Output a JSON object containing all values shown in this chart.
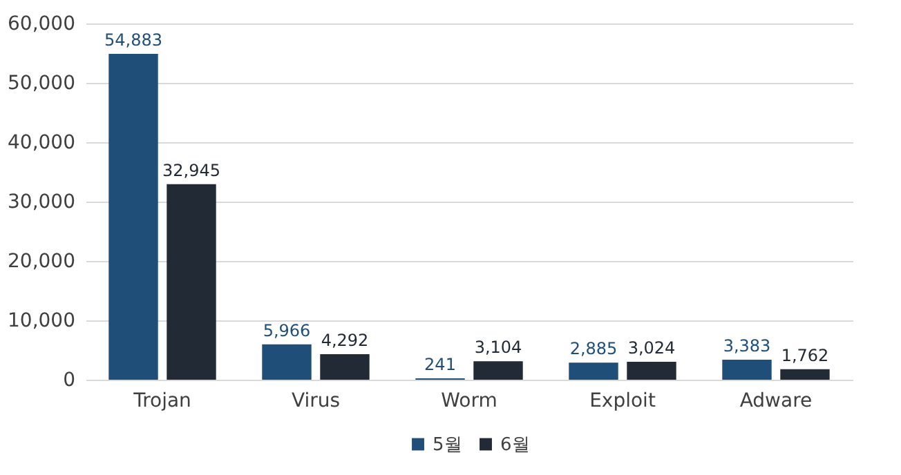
{
  "chart_data": {
    "type": "bar",
    "categories": [
      "Trojan",
      "Virus",
      "Worm",
      "Exploit",
      "Adware"
    ],
    "series": [
      {
        "name": "5월",
        "color": "#1f4e79",
        "values": [
          54883,
          5966,
          241,
          2885,
          3383
        ],
        "value_labels": [
          "54,883",
          "5,966",
          "241",
          "2,885",
          "3,383"
        ]
      },
      {
        "name": "6월",
        "color": "#222a35",
        "values": [
          32945,
          4292,
          3104,
          3024,
          1762
        ],
        "value_labels": [
          "32,945",
          "4,292",
          "3,104",
          "3,024",
          "1,762"
        ]
      }
    ],
    "ylim": [
      0,
      60000
    ],
    "yticks": [
      0,
      {
        "value": 10000,
        "label": "10,000"
      },
      {
        "value": 20000,
        "label": "20,000"
      },
      {
        "value": 30000,
        "label": "30,000"
      },
      {
        "value": 40000,
        "label": "40,000"
      },
      {
        "value": 50000,
        "label": "50,000"
      },
      {
        "value": 60000,
        "label": "60,000"
      }
    ],
    "grid": "y",
    "legend": "bottom"
  }
}
